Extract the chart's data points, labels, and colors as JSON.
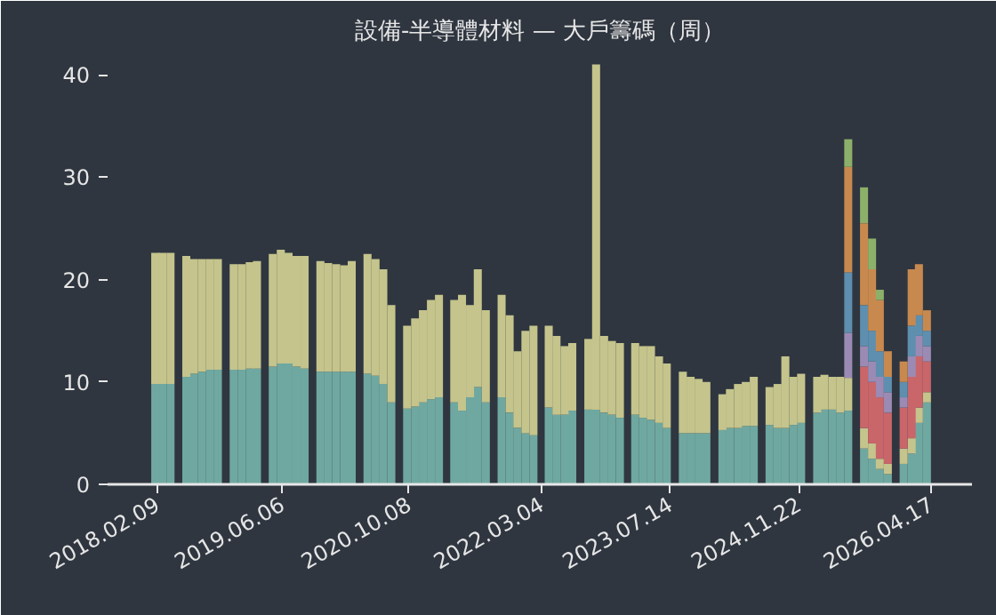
{
  "chart_data": {
    "type": "bar",
    "stacked": true,
    "title": "設備-半導體材料 — 大戶籌碼（周）",
    "x": [
      "2018-02",
      "2018-03",
      "2018-04",
      "2018-05",
      "2018-06",
      "2018-07",
      "2018-08",
      "2018-09",
      "2018-10",
      "2018-11",
      "2018-12",
      "2019-01",
      "2019-02",
      "2019-03",
      "2019-04",
      "2019-05",
      "2019-06",
      "2019-07",
      "2019-08",
      "2019-09",
      "2019-10",
      "2019-11",
      "2019-12",
      "2020-01",
      "2020-02",
      "2020-03",
      "2020-04",
      "2020-05",
      "2020-06",
      "2020-07",
      "2020-08",
      "2020-09",
      "2020-10",
      "2020-11",
      "2020-12",
      "2021-01",
      "2021-02",
      "2021-03",
      "2021-04",
      "2021-05",
      "2021-06",
      "2021-07",
      "2021-08",
      "2021-09",
      "2021-10",
      "2021-11",
      "2021-12",
      "2022-01",
      "2022-02",
      "2022-03",
      "2022-04",
      "2022-05",
      "2022-06",
      "2022-07",
      "2022-08",
      "2022-09",
      "2022-10",
      "2022-11",
      "2022-12",
      "2023-01",
      "2023-02",
      "2023-03",
      "2023-04",
      "2023-05",
      "2023-06",
      "2023-07",
      "2023-08",
      "2023-09",
      "2023-10",
      "2023-11",
      "2023-12",
      "2024-01",
      "2024-02",
      "2024-03",
      "2024-04",
      "2024-05",
      "2024-06",
      "2024-07",
      "2024-08",
      "2024-09",
      "2024-10",
      "2024-11",
      "2024-12",
      "2025-01",
      "2025-02",
      "2025-03",
      "2025-04",
      "2025-05",
      "2025-06",
      "2025-07",
      "2025-08",
      "2025-09",
      "2025-10",
      "2025-11",
      "2025-12",
      "2026-01",
      "2026-02",
      "2026-03",
      "2026-04"
    ],
    "series": [
      {
        "color": "#6fa8a0",
        "values": [
          9.8,
          9.8,
          9.8,
          null,
          10.5,
          10.8,
          11.0,
          11.2,
          11.2,
          null,
          11.2,
          11.2,
          11.3,
          11.3,
          null,
          11.5,
          11.8,
          11.8,
          11.5,
          11.3,
          null,
          11.0,
          11.0,
          11.0,
          11.0,
          11.0,
          null,
          10.8,
          10.6,
          9.8,
          8.0,
          null,
          7.4,
          7.6,
          8.0,
          8.3,
          8.5,
          null,
          8.0,
          7.2,
          8.5,
          9.5,
          8.0,
          null,
          8.5,
          7.0,
          5.5,
          5.0,
          4.8,
          null,
          7.5,
          6.8,
          6.8,
          7.2,
          null,
          7.3,
          7.3,
          7.0,
          6.8,
          6.5,
          null,
          6.8,
          6.5,
          6.3,
          6.0,
          5.5,
          null,
          5.0,
          5.0,
          5.0,
          5.0,
          null,
          5.3,
          5.5,
          5.5,
          5.7,
          5.7,
          null,
          5.8,
          5.5,
          5.5,
          5.8,
          6.0,
          null,
          7.0,
          7.3,
          7.3,
          7.0,
          7.2,
          null,
          3.5,
          2.5,
          1.5,
          1.0,
          null,
          2.0,
          3.0,
          6.0,
          8.0
        ]
      },
      {
        "color": "#c4c48c",
        "values": [
          12.8,
          12.8,
          12.8,
          null,
          11.8,
          11.2,
          11.0,
          10.8,
          10.8,
          null,
          10.3,
          10.3,
          10.4,
          10.5,
          null,
          11.0,
          11.1,
          10.8,
          10.8,
          11.0,
          null,
          10.8,
          10.6,
          10.5,
          10.4,
          10.8,
          null,
          11.7,
          11.4,
          11.2,
          9.5,
          null,
          8.1,
          8.6,
          9.0,
          9.7,
          10.0,
          null,
          10.0,
          11.3,
          9.0,
          11.5,
          9.0,
          null,
          10.0,
          9.5,
          7.5,
          10.0,
          10.7,
          null,
          8.0,
          7.7,
          6.7,
          6.6,
          null,
          6.9,
          33.7,
          7.5,
          7.2,
          7.3,
          null,
          7.0,
          7.0,
          7.2,
          6.5,
          6.3,
          null,
          6.0,
          5.5,
          5.3,
          5.0,
          null,
          3.5,
          3.8,
          4.3,
          4.3,
          4.8,
          null,
          3.7,
          4.3,
          7.0,
          4.7,
          4.8,
          null,
          3.5,
          3.4,
          3.2,
          3.5,
          3.2,
          null,
          2.0,
          1.5,
          1.0,
          1.0,
          null,
          1.5,
          1.5,
          1.5,
          1.0
        ]
      },
      {
        "color": "#c9666a",
        "values": [
          null,
          null,
          null,
          null,
          null,
          null,
          null,
          null,
          null,
          null,
          null,
          null,
          null,
          null,
          null,
          null,
          null,
          null,
          null,
          null,
          null,
          null,
          null,
          null,
          null,
          null,
          null,
          null,
          null,
          null,
          null,
          null,
          null,
          null,
          null,
          null,
          null,
          null,
          null,
          null,
          null,
          null,
          null,
          null,
          null,
          null,
          null,
          null,
          null,
          null,
          null,
          null,
          null,
          null,
          null,
          null,
          null,
          null,
          null,
          null,
          null,
          null,
          null,
          null,
          null,
          null,
          null,
          null,
          null,
          null,
          null,
          null,
          null,
          null,
          null,
          null,
          null,
          null,
          null,
          null,
          null,
          null,
          null,
          null,
          null,
          null,
          null,
          null,
          null,
          null,
          6,
          6,
          6,
          5,
          null,
          4,
          6,
          5,
          3
        ]
      },
      {
        "color": "#9b8bb4",
        "values": [
          null,
          null,
          null,
          null,
          null,
          null,
          null,
          null,
          null,
          null,
          null,
          null,
          null,
          null,
          null,
          null,
          null,
          null,
          null,
          null,
          null,
          null,
          null,
          null,
          null,
          null,
          null,
          null,
          null,
          null,
          null,
          null,
          null,
          null,
          null,
          null,
          null,
          null,
          null,
          null,
          null,
          null,
          null,
          null,
          null,
          null,
          null,
          null,
          null,
          null,
          null,
          null,
          null,
          null,
          null,
          null,
          null,
          null,
          null,
          null,
          null,
          null,
          null,
          null,
          null,
          null,
          null,
          null,
          null,
          null,
          null,
          null,
          null,
          null,
          null,
          null,
          null,
          null,
          null,
          null,
          null,
          null,
          null,
          null,
          null,
          null,
          null,
          null,
          4.4,
          null,
          2,
          2,
          2,
          2,
          null,
          1,
          2,
          2,
          1.5
        ]
      },
      {
        "color": "#5f8fae",
        "values": [
          null,
          null,
          null,
          null,
          null,
          null,
          null,
          null,
          null,
          null,
          null,
          null,
          null,
          null,
          null,
          null,
          null,
          null,
          null,
          null,
          null,
          null,
          null,
          null,
          null,
          null,
          null,
          null,
          null,
          null,
          null,
          null,
          null,
          null,
          null,
          null,
          null,
          null,
          null,
          null,
          null,
          null,
          null,
          null,
          null,
          null,
          null,
          null,
          null,
          null,
          null,
          null,
          null,
          null,
          null,
          null,
          null,
          null,
          null,
          null,
          null,
          null,
          null,
          null,
          null,
          null,
          null,
          null,
          null,
          null,
          null,
          null,
          null,
          null,
          null,
          null,
          null,
          null,
          null,
          null,
          null,
          null,
          null,
          null,
          null,
          null,
          null,
          null,
          5.9,
          null,
          4,
          3,
          2.5,
          1.5,
          null,
          1.5,
          3,
          2,
          1.5
        ]
      },
      {
        "color": "#c8894f",
        "values": [
          null,
          null,
          null,
          null,
          null,
          null,
          null,
          null,
          null,
          null,
          null,
          null,
          null,
          null,
          null,
          null,
          null,
          null,
          null,
          null,
          null,
          null,
          null,
          null,
          null,
          null,
          null,
          null,
          null,
          null,
          null,
          null,
          null,
          null,
          null,
          null,
          null,
          null,
          null,
          null,
          null,
          null,
          null,
          null,
          null,
          null,
          null,
          null,
          null,
          null,
          null,
          null,
          null,
          null,
          null,
          null,
          null,
          null,
          null,
          null,
          null,
          null,
          null,
          null,
          null,
          null,
          null,
          null,
          null,
          null,
          null,
          null,
          null,
          null,
          null,
          null,
          null,
          null,
          null,
          null,
          null,
          null,
          null,
          null,
          null,
          null,
          null,
          null,
          10.3,
          null,
          8,
          6,
          5,
          2.5,
          null,
          2,
          5.5,
          5,
          2
        ]
      },
      {
        "color": "#8cb06a",
        "values": [
          null,
          null,
          null,
          null,
          null,
          null,
          null,
          null,
          null,
          null,
          null,
          null,
          null,
          null,
          null,
          null,
          null,
          null,
          null,
          null,
          null,
          null,
          null,
          null,
          null,
          null,
          null,
          null,
          null,
          null,
          null,
          null,
          null,
          null,
          null,
          null,
          null,
          null,
          null,
          null,
          null,
          null,
          null,
          null,
          null,
          null,
          null,
          null,
          null,
          null,
          null,
          null,
          null,
          null,
          null,
          null,
          null,
          null,
          null,
          null,
          null,
          null,
          null,
          null,
          null,
          null,
          null,
          null,
          null,
          null,
          null,
          null,
          null,
          null,
          null,
          null,
          null,
          null,
          null,
          null,
          null,
          null,
          null,
          null,
          null,
          null,
          null,
          null,
          2.7,
          null,
          3.5,
          3,
          1,
          null,
          null,
          null,
          null,
          null,
          null
        ]
      }
    ],
    "xlim": [
      "2017-08-01",
      "2026-09-22"
    ],
    "xticks": [
      {
        "value": "2018-02-09",
        "label": "2018.02.09"
      },
      {
        "value": "2019-06-06",
        "label": "2019.06.06"
      },
      {
        "value": "2020-10-08",
        "label": "2020.10.08"
      },
      {
        "value": "2022-03-04",
        "label": "2022.03.04"
      },
      {
        "value": "2023-07-14",
        "label": "2023.07.14"
      },
      {
        "value": "2024-11-22",
        "label": "2024.11.22"
      },
      {
        "value": "2026-04-17",
        "label": "2026.04.17"
      }
    ],
    "ylim": [
      0,
      42
    ],
    "yticks": [
      0,
      10,
      20,
      30,
      40
    ],
    "grid": false
  }
}
